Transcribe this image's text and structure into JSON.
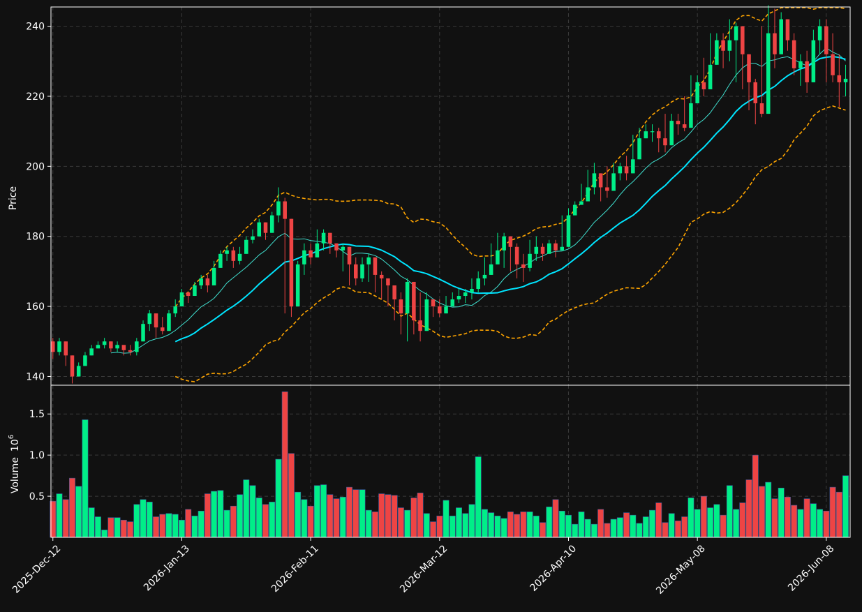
{
  "theme": {
    "background": "#111111",
    "up_color": "#00ee88",
    "down_color": "#ee4444",
    "grid_color": "#3a3a3a",
    "axis_color": "#ffffff",
    "ma_fast_color": "#40e0d0",
    "ma_slow_color": "#00e5ff",
    "band_color": "#ffa500"
  },
  "chart_data": {
    "type": "candlestick",
    "price_panel": {
      "ylabel": "Price",
      "ylim": [
        137.5,
        245.5
      ],
      "yticks": [
        140,
        160,
        180,
        200,
        220,
        240
      ],
      "overlays": [
        "thin moving average",
        "thick moving average",
        "upper band (dashed)",
        "lower band (dashed)"
      ],
      "grid": true
    },
    "volume_panel": {
      "ylabel": "Volume",
      "ylabel_exponent": "10",
      "ylabel_exponent_power": "6",
      "ylim": [
        0,
        1.85
      ],
      "yticks": [
        0.5,
        1.0,
        1.5
      ],
      "ytick_labels": [
        "0.5",
        "1.0",
        "1.5"
      ],
      "grid": true
    },
    "xlim": [
      -0.3,
      123.7
    ],
    "xtick_indices": [
      0,
      20,
      40,
      60,
      80,
      100,
      120
    ],
    "xtick_labels": [
      "2025-Dec-12",
      "2026-Jan-13",
      "2026-Feb-11",
      "2026-Mar-12",
      "2026-Apr-10",
      "2026-May-08",
      "2026-Jun-08"
    ],
    "close": [
      147,
      150,
      146,
      140,
      143,
      146,
      148,
      149,
      150,
      148,
      149,
      147.5,
      147,
      150,
      155,
      158,
      154,
      153,
      158,
      160,
      164,
      163,
      166,
      168,
      166,
      171,
      175,
      176,
      173,
      175,
      179,
      180,
      184,
      181,
      186,
      190,
      185,
      160,
      172,
      176,
      174,
      178,
      181,
      178,
      176,
      177,
      172,
      168,
      172,
      174,
      169,
      168,
      166,
      162,
      158,
      167,
      156,
      153,
      162,
      160,
      158,
      160,
      162,
      163,
      164,
      165,
      168,
      169,
      172,
      176,
      180,
      177,
      172,
      171,
      175,
      177,
      175,
      178,
      176,
      177,
      186,
      189,
      190,
      194,
      198,
      194,
      193,
      198,
      200,
      198,
      202,
      208,
      210,
      210,
      208,
      206,
      213,
      212,
      211,
      218,
      224,
      222,
      229,
      236,
      233,
      236,
      240,
      232,
      224,
      218,
      215,
      238,
      232,
      242,
      236,
      228,
      230,
      224,
      236,
      240,
      232,
      226,
      224,
      225
    ],
    "range_high": [
      151,
      151,
      148,
      145,
      144,
      147,
      149,
      150,
      151,
      150,
      150,
      149,
      149,
      151,
      156,
      159,
      158,
      157,
      159,
      162,
      165,
      164,
      167,
      169,
      169,
      173,
      176,
      177,
      177,
      177,
      180,
      182,
      185,
      183,
      187,
      194,
      191,
      173,
      173,
      178,
      178,
      182,
      182,
      181,
      178,
      178,
      177,
      174,
      174,
      175,
      173,
      170,
      168,
      164,
      164,
      168,
      166,
      164,
      164,
      161,
      162,
      163,
      164,
      165,
      165,
      168,
      170,
      174,
      178,
      181,
      181,
      178,
      178,
      175,
      179,
      180,
      178,
      179,
      179,
      186,
      188,
      190,
      195,
      199,
      201,
      196,
      200,
      201,
      201,
      203,
      209,
      211,
      212,
      212,
      211,
      215,
      215,
      215,
      220,
      226,
      226,
      231,
      238,
      238,
      238,
      242,
      241,
      238,
      226,
      225,
      240,
      246,
      245,
      244,
      242,
      238,
      232,
      233,
      239,
      242,
      242,
      238,
      232,
      229
    ],
    "range_low": [
      145,
      146,
      143,
      138,
      141,
      145,
      146,
      148,
      148,
      147,
      147,
      146,
      146,
      146,
      152,
      153,
      151,
      152,
      155,
      157,
      162,
      161,
      164,
      165,
      164,
      167,
      172,
      173,
      171,
      172,
      175,
      178,
      181,
      179,
      183,
      184,
      158,
      157,
      164,
      169,
      172,
      174,
      176,
      175,
      174,
      170,
      166,
      166,
      167,
      167,
      164,
      162,
      160,
      156,
      152,
      150,
      152,
      150,
      155,
      157,
      157,
      158,
      160,
      161,
      161,
      162,
      164,
      166,
      170,
      175,
      171,
      170,
      168,
      167,
      170,
      173,
      173,
      175,
      174,
      180,
      185,
      186,
      189,
      193,
      192,
      190,
      191,
      196,
      196,
      196,
      201,
      206,
      208,
      207,
      204,
      204,
      210,
      209,
      210,
      217,
      222,
      220,
      226,
      230,
      228,
      230,
      224,
      222,
      216,
      212,
      214,
      228,
      228,
      235,
      233,
      226,
      223,
      221,
      230,
      232,
      224,
      224,
      217,
      220
    ],
    "volume": [
      0.44,
      0.53,
      0.46,
      0.72,
      0.62,
      1.43,
      0.36,
      0.25,
      0.09,
      0.24,
      0.24,
      0.21,
      0.19,
      0.4,
      0.46,
      0.43,
      0.25,
      0.28,
      0.29,
      0.28,
      0.21,
      0.34,
      0.26,
      0.32,
      0.53,
      0.56,
      0.57,
      0.33,
      0.38,
      0.52,
      0.7,
      0.63,
      0.48,
      0.4,
      0.43,
      0.95,
      1.77,
      1.02,
      0.55,
      0.46,
      0.38,
      0.63,
      0.64,
      0.52,
      0.47,
      0.49,
      0.61,
      0.58,
      0.58,
      0.33,
      0.31,
      0.53,
      0.52,
      0.51,
      0.36,
      0.33,
      0.48,
      0.54,
      0.29,
      0.19,
      0.26,
      0.45,
      0.26,
      0.36,
      0.29,
      0.4,
      0.98,
      0.34,
      0.3,
      0.26,
      0.23,
      0.31,
      0.28,
      0.31,
      0.31,
      0.26,
      0.18,
      0.37,
      0.46,
      0.32,
      0.27,
      0.16,
      0.31,
      0.22,
      0.16,
      0.34,
      0.17,
      0.22,
      0.24,
      0.3,
      0.27,
      0.17,
      0.25,
      0.33,
      0.42,
      0.18,
      0.29,
      0.2,
      0.25,
      0.48,
      0.34,
      0.5,
      0.36,
      0.4,
      0.27,
      0.63,
      0.34,
      0.42,
      0.7,
      1.0,
      0.62,
      0.67,
      0.47,
      0.6,
      0.49,
      0.39,
      0.34,
      0.47,
      0.41,
      0.34,
      0.32,
      0.61,
      0.55,
      0.75
    ]
  }
}
